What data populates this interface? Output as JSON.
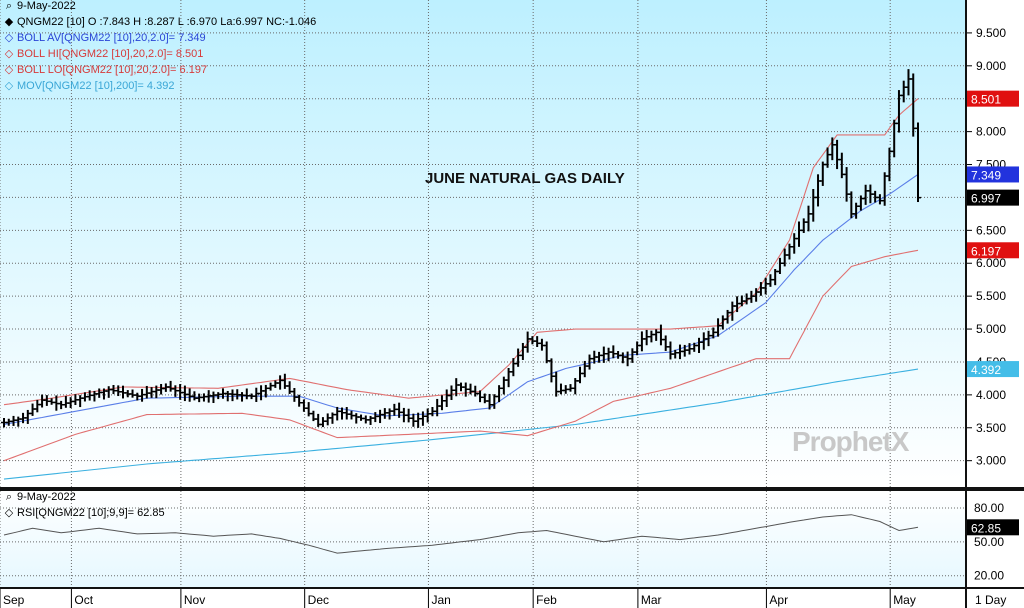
{
  "chart_data": {
    "type": "candlestick",
    "title": "JUNE NATURAL GAS DAILY",
    "date": "9-May-2022",
    "symbol_quote": "QNGM22 [10] O :7.843 H :8.287 L :6.970 La:6.997 NC:-1.046",
    "legend": [
      {
        "name": "BOLL AV[QNGM22 [10],20,2.0]= 7.349",
        "color": "#2a45d6"
      },
      {
        "name": "BOLL HI[QNGM22 [10],20,2.0]= 8.501",
        "color": "#d63a3a"
      },
      {
        "name": "BOLL LO[QNGM22 [10],20,2.0]= 6.197",
        "color": "#d63a3a"
      },
      {
        "name": "MOV[QNGM22 [10],200]= 4.392",
        "color": "#3aa6d6"
      }
    ],
    "ylim": [
      2.6,
      10.0
    ],
    "yticks": [
      "3.000",
      "3.500",
      "4.000",
      "4.500",
      "5.000",
      "5.500",
      "6.000",
      "6.500",
      "7.000",
      "7.500",
      "8.000",
      "8.500",
      "9.000",
      "9.500"
    ],
    "x_months": [
      {
        "label": "Sep",
        "index": 0
      },
      {
        "label": "Oct",
        "index": 15
      },
      {
        "label": "Nov",
        "index": 38
      },
      {
        "label": "Dec",
        "index": 64
      },
      {
        "label": "Jan",
        "index": 90
      },
      {
        "label": "Feb",
        "index": 112
      },
      {
        "label": "Mar",
        "index": 134
      },
      {
        "label": "Apr",
        "index": 161
      },
      {
        "label": "May",
        "index": 187
      }
    ],
    "price_markers": [
      {
        "label": "8.501",
        "value": 8.501,
        "color": "#e01010"
      },
      {
        "label": "7.349",
        "value": 7.349,
        "color": "#2233dd"
      },
      {
        "label": "6.997",
        "value": 6.997,
        "color": "#000000"
      },
      {
        "label": "6.197",
        "value": 6.197,
        "color": "#e01010"
      },
      {
        "label": "4.392",
        "value": 4.392,
        "color": "#44bde8"
      }
    ],
    "close_anchors": [
      [
        0,
        3.58
      ],
      [
        4,
        3.65
      ],
      [
        8,
        3.92
      ],
      [
        12,
        3.85
      ],
      [
        16,
        3.95
      ],
      [
        22,
        4.08
      ],
      [
        28,
        3.98
      ],
      [
        34,
        4.12
      ],
      [
        40,
        3.95
      ],
      [
        46,
        4.02
      ],
      [
        52,
        3.98
      ],
      [
        58,
        4.22
      ],
      [
        62,
        3.88
      ],
      [
        66,
        3.55
      ],
      [
        70,
        3.75
      ],
      [
        76,
        3.62
      ],
      [
        82,
        3.78
      ],
      [
        86,
        3.6
      ],
      [
        90,
        3.75
      ],
      [
        95,
        4.15
      ],
      [
        99,
        4.02
      ],
      [
        102,
        3.85
      ],
      [
        106,
        4.35
      ],
      [
        110,
        4.85
      ],
      [
        113,
        4.75
      ],
      [
        116,
        4.05
      ],
      [
        119,
        4.1
      ],
      [
        123,
        4.55
      ],
      [
        127,
        4.65
      ],
      [
        131,
        4.55
      ],
      [
        134,
        4.85
      ],
      [
        137,
        4.95
      ],
      [
        140,
        4.62
      ],
      [
        144,
        4.7
      ],
      [
        149,
        4.95
      ],
      [
        153,
        5.35
      ],
      [
        157,
        5.5
      ],
      [
        161,
        5.75
      ],
      [
        165,
        6.25
      ],
      [
        169,
        6.75
      ],
      [
        172,
        7.5
      ],
      [
        174,
        7.8
      ],
      [
        176,
        7.35
      ],
      [
        178,
        6.75
      ],
      [
        181,
        7.1
      ],
      [
        184,
        6.95
      ],
      [
        186,
        7.7
      ],
      [
        188,
        8.55
      ],
      [
        190,
        8.8
      ],
      [
        191,
        8.05
      ],
      [
        192,
        6.997
      ]
    ],
    "boll_hi_anchors": [
      [
        0,
        3.85
      ],
      [
        10,
        3.95
      ],
      [
        25,
        4.12
      ],
      [
        45,
        4.1
      ],
      [
        60,
        4.25
      ],
      [
        72,
        4.08
      ],
      [
        85,
        3.95
      ],
      [
        100,
        4.05
      ],
      [
        106,
        4.45
      ],
      [
        112,
        4.95
      ],
      [
        120,
        5.0
      ],
      [
        130,
        5.0
      ],
      [
        140,
        5.0
      ],
      [
        150,
        5.05
      ],
      [
        158,
        5.55
      ],
      [
        165,
        6.35
      ],
      [
        170,
        7.45
      ],
      [
        175,
        7.95
      ],
      [
        180,
        7.95
      ],
      [
        185,
        7.95
      ],
      [
        188,
        8.25
      ],
      [
        192,
        8.501
      ]
    ],
    "boll_av_anchors": [
      [
        0,
        3.55
      ],
      [
        15,
        3.75
      ],
      [
        30,
        3.95
      ],
      [
        50,
        3.98
      ],
      [
        62,
        3.98
      ],
      [
        70,
        3.8
      ],
      [
        80,
        3.68
      ],
      [
        92,
        3.72
      ],
      [
        102,
        3.8
      ],
      [
        110,
        4.2
      ],
      [
        118,
        4.4
      ],
      [
        130,
        4.6
      ],
      [
        140,
        4.65
      ],
      [
        150,
        4.9
      ],
      [
        160,
        5.4
      ],
      [
        166,
        5.9
      ],
      [
        172,
        6.35
      ],
      [
        180,
        6.8
      ],
      [
        186,
        7.05
      ],
      [
        192,
        7.349
      ]
    ],
    "boll_lo_anchors": [
      [
        0,
        3.0
      ],
      [
        15,
        3.4
      ],
      [
        30,
        3.7
      ],
      [
        50,
        3.72
      ],
      [
        60,
        3.62
      ],
      [
        70,
        3.35
      ],
      [
        85,
        3.4
      ],
      [
        100,
        3.45
      ],
      [
        110,
        3.38
      ],
      [
        120,
        3.6
      ],
      [
        128,
        3.9
      ],
      [
        140,
        4.1
      ],
      [
        150,
        4.35
      ],
      [
        158,
        4.55
      ],
      [
        165,
        4.55
      ],
      [
        172,
        5.5
      ],
      [
        178,
        5.95
      ],
      [
        185,
        6.1
      ],
      [
        192,
        6.197
      ]
    ],
    "mov_anchors": [
      [
        0,
        2.72
      ],
      [
        30,
        2.95
      ],
      [
        60,
        3.12
      ],
      [
        90,
        3.32
      ],
      [
        120,
        3.55
      ],
      [
        150,
        3.88
      ],
      [
        175,
        4.2
      ],
      [
        192,
        4.392
      ]
    ],
    "rsi": {
      "date": "9-May-2022",
      "label": "RSI[QNGM22 [10];9,9]= 62.85",
      "ylim": [
        10,
        95
      ],
      "yticks": [
        "20.00",
        "50.00",
        "80.00"
      ],
      "marker": {
        "label": "62.85",
        "value": 62.85
      },
      "anchors": [
        [
          0,
          56
        ],
        [
          6,
          62
        ],
        [
          12,
          58
        ],
        [
          20,
          62
        ],
        [
          28,
          57
        ],
        [
          36,
          58
        ],
        [
          44,
          55
        ],
        [
          52,
          57
        ],
        [
          58,
          53
        ],
        [
          64,
          47
        ],
        [
          70,
          40
        ],
        [
          80,
          44
        ],
        [
          90,
          47
        ],
        [
          100,
          52
        ],
        [
          108,
          58
        ],
        [
          114,
          60
        ],
        [
          120,
          55
        ],
        [
          126,
          50
        ],
        [
          134,
          55
        ],
        [
          142,
          52
        ],
        [
          150,
          56
        ],
        [
          158,
          62
        ],
        [
          166,
          68
        ],
        [
          172,
          72
        ],
        [
          178,
          74
        ],
        [
          184,
          68
        ],
        [
          188,
          60
        ],
        [
          192,
          62.85
        ]
      ]
    },
    "timeframe_label": "1 Day",
    "watermark": "ProphetX"
  }
}
